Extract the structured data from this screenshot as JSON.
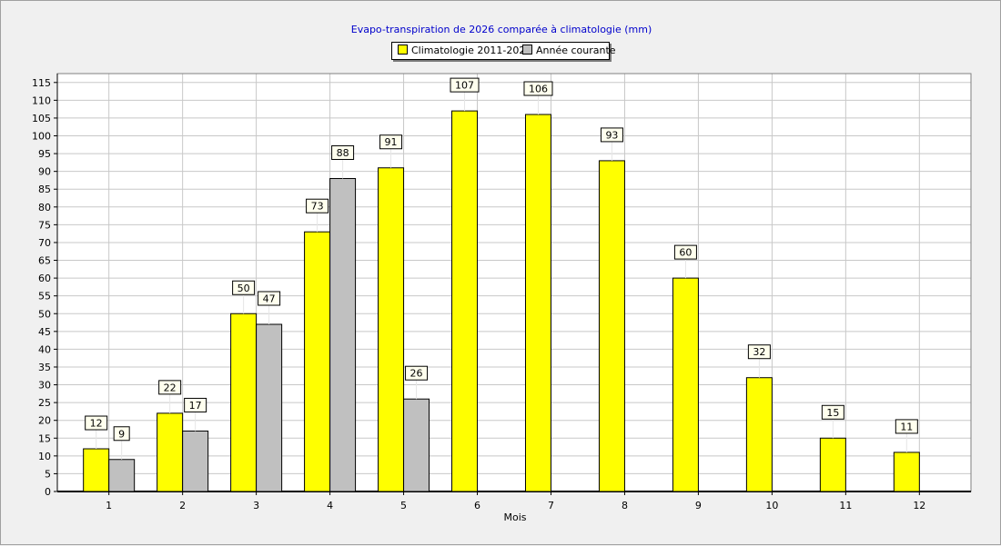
{
  "chart_data": {
    "type": "bar",
    "title": "Evapo-transpiration de 2026 comparée à climatologie (mm)",
    "xlabel": "Mois",
    "ylabel": "",
    "ylim": [
      0,
      115
    ],
    "ytick_step": 5,
    "grid": true,
    "legend_position": "top-center",
    "categories": [
      "1",
      "2",
      "3",
      "4",
      "5",
      "6",
      "7",
      "8",
      "9",
      "10",
      "11",
      "12"
    ],
    "series": [
      {
        "name": "Climatologie 2011-2025",
        "color": "#ffff00",
        "values": [
          12,
          22,
          50,
          73,
          91,
          107,
          106,
          93,
          60,
          32,
          15,
          11
        ],
        "labels": [
          "12",
          "22",
          "50",
          "73",
          "91",
          "107",
          "106",
          "93",
          "60",
          "32",
          "15",
          "11"
        ]
      },
      {
        "name": "Année courante",
        "color": "#c0c0c0",
        "values": [
          9,
          17,
          47,
          88,
          26,
          null,
          null,
          null,
          null,
          null,
          null,
          null
        ],
        "labels": [
          "9",
          "17",
          "47",
          "88",
          "26",
          null,
          null,
          null,
          null,
          null,
          null,
          null
        ]
      }
    ]
  }
}
